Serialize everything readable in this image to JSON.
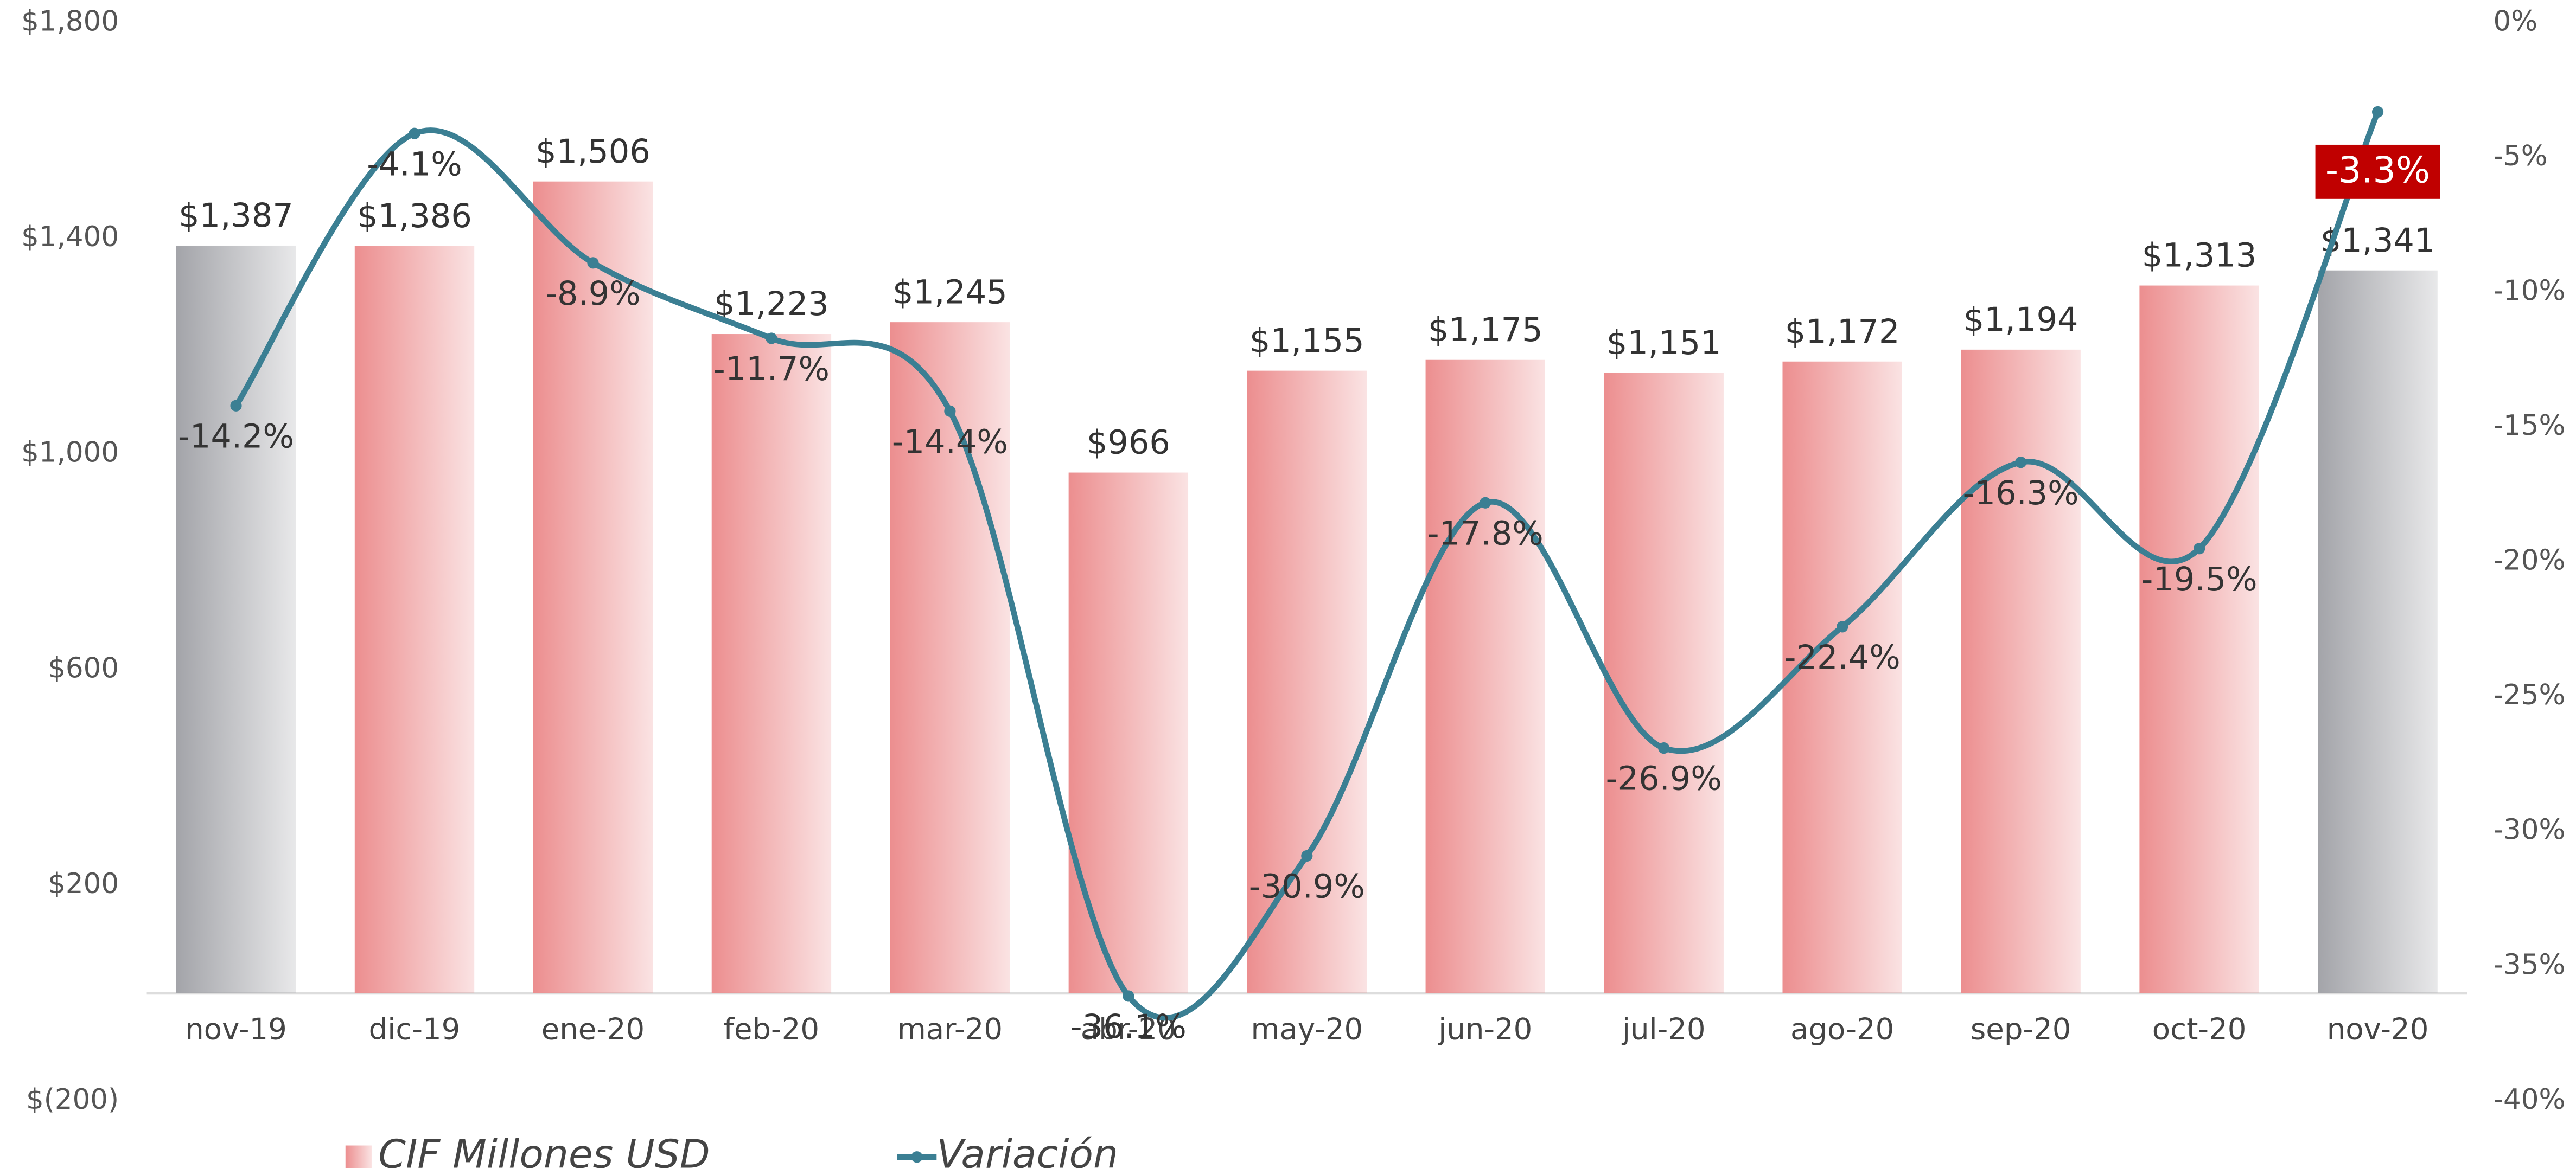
{
  "chart_data": {
    "type": "bar",
    "categories": [
      "nov-19",
      "dic-19",
      "ene-20",
      "feb-20",
      "mar-20",
      "abr-20",
      "may-20",
      "jun-20",
      "jul-20",
      "ago-20",
      "sep-20",
      "oct-20",
      "nov-20"
    ],
    "series": [
      {
        "name": "CIF  Millones USD",
        "type": "bar",
        "color": "#ec8e8f",
        "colors": [
          "#a3a4a9",
          "#ec8e8f",
          "#ec8e8f",
          "#ec8e8f",
          "#ec8e8f",
          "#ec8e8f",
          "#ec8e8f",
          "#ec8e8f",
          "#ec8e8f",
          "#ec8e8f",
          "#ec8e8f",
          "#ec8e8f",
          "#a3a4a9"
        ],
        "values": [
          1387,
          1386,
          1506,
          1223,
          1245,
          966,
          1155,
          1175,
          1151,
          1172,
          1194,
          1313,
          1341
        ],
        "value_labels": [
          "$1,387",
          "$1,386",
          "$1,506",
          "$1,223",
          "$1,245",
          "$966",
          "$1,155",
          "$1,175",
          "$1,151",
          "$1,172",
          "$1,194",
          "$1,313",
          "$1,341"
        ]
      },
      {
        "name": "Variación",
        "type": "line",
        "axis": "y2",
        "color": "#3b7f93",
        "values": [
          -14.2,
          -4.1,
          -8.9,
          -11.7,
          -14.4,
          -36.1,
          -30.9,
          -17.8,
          -26.9,
          -22.4,
          -16.3,
          -19.5,
          -3.3
        ],
        "value_labels": [
          "-14.2%",
          "-4.1%",
          "-8.9%",
          "-11.7%",
          "-14.4%",
          "-36.1%",
          "-30.9%",
          "-17.8%",
          "-26.9%",
          "-22.4%",
          "-16.3%",
          "-19.5%",
          "-3.3%"
        ],
        "highlight_color": "#c00000"
      }
    ],
    "ylim": [
      -200,
      1800
    ],
    "yticks": [
      {
        "value": -200,
        "label": "$(200)"
      },
      {
        "value": 200,
        "label": "$200"
      },
      {
        "value": 600,
        "label": "$600"
      },
      {
        "value": 1000,
        "label": "$1,000"
      },
      {
        "value": 1400,
        "label": "$1,400"
      },
      {
        "value": 1800,
        "label": "$1,800"
      }
    ],
    "y2lim": [
      -40,
      0
    ],
    "y2ticks": [
      {
        "value": -40,
        "label": "-40%"
      },
      {
        "value": -35,
        "label": "-35%"
      },
      {
        "value": -30,
        "label": "-30%"
      },
      {
        "value": -25,
        "label": "-25%"
      },
      {
        "value": -20,
        "label": "-20%"
      },
      {
        "value": -15,
        "label": "-15%"
      },
      {
        "value": -10,
        "label": "-10%"
      },
      {
        "value": -5,
        "label": "-5%"
      },
      {
        "value": 0,
        "label": "0%"
      }
    ],
    "grid": false,
    "legend": "bottom"
  }
}
